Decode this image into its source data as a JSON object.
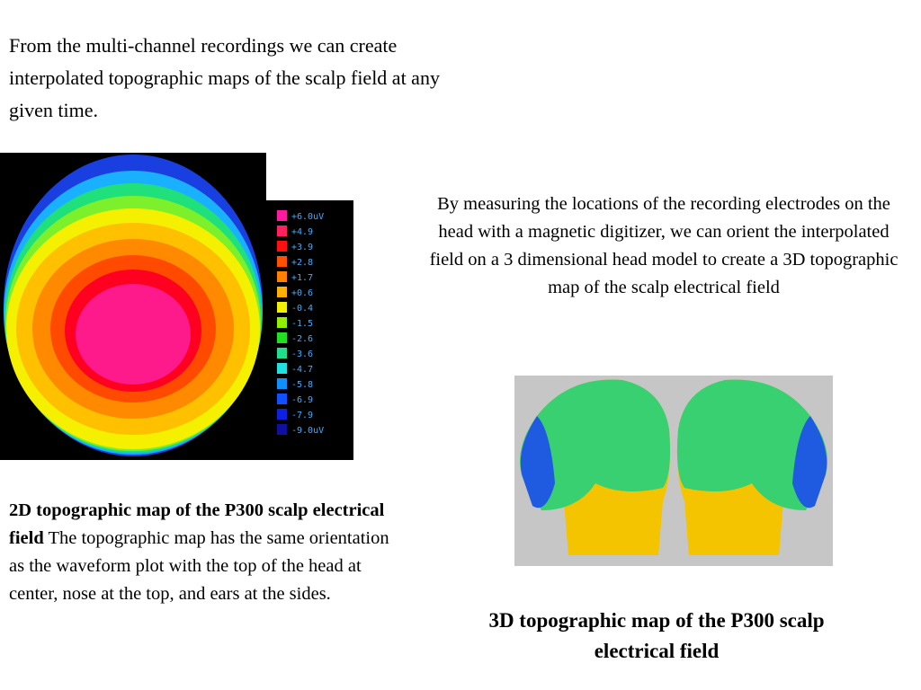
{
  "intro": "From the multi-channel recordings we can create interpolated  topographic maps of the scalp field at any given time.",
  "scale_labels": [
    "+6.0uV",
    "+4.9",
    "+3.9",
    "+2.8",
    "+1.7",
    "+0.6",
    "-0.4",
    "-1.5",
    "-2.6",
    "-3.6",
    "-4.7",
    "-5.8",
    "-6.9",
    "-7.9",
    "-9.0uV"
  ],
  "right_text": "By measuring the locations of the recording electrodes on the head with a magnetic digitizer, we can orient the interpolated field on a 3 dimensional head model to create a 3D topographic map of the scalp electrical field",
  "caption_2d": {
    "bold": "2D topographic map of the P300 scalp electrical field",
    "text": " The topographic map has the same orientation as the waveform plot with the top of the head at center, nose at the top, and ears at the sides."
  },
  "caption_3d": "3D topographic map of the P300 scalp electrical field"
}
